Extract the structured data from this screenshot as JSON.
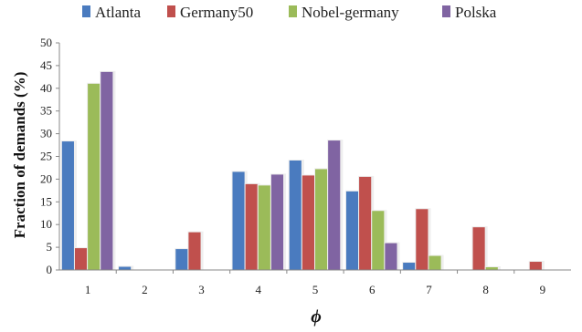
{
  "chart_data": {
    "type": "bar",
    "title": "",
    "xlabel": "ϕ",
    "ylabel": "Fraction of demands (%)",
    "ylim": [
      0,
      50
    ],
    "yticks": [
      0,
      5,
      10,
      15,
      20,
      25,
      30,
      35,
      40,
      45,
      50
    ],
    "grid": false,
    "legend_position": "top",
    "categories": [
      "1",
      "2",
      "3",
      "4",
      "5",
      "6",
      "7",
      "8",
      "9"
    ],
    "series": [
      {
        "name": "Atlanta",
        "color": "#4a7bbf",
        "values": [
          28.3,
          0.7,
          4.6,
          21.6,
          24.1,
          17.3,
          1.6,
          0,
          0
        ]
      },
      {
        "name": "Germany50",
        "color": "#c0504d",
        "values": [
          4.8,
          0,
          8.3,
          18.9,
          20.8,
          20.5,
          13.4,
          9.4,
          1.8
        ]
      },
      {
        "name": "Nobel-germany",
        "color": "#9bbb59",
        "values": [
          41.0,
          0,
          0,
          18.6,
          22.2,
          13.0,
          3.1,
          0.6,
          0
        ]
      },
      {
        "name": "Polska",
        "color": "#8064a2",
        "values": [
          43.6,
          0,
          0,
          21.0,
          28.5,
          5.9,
          0,
          0,
          0
        ]
      }
    ]
  }
}
